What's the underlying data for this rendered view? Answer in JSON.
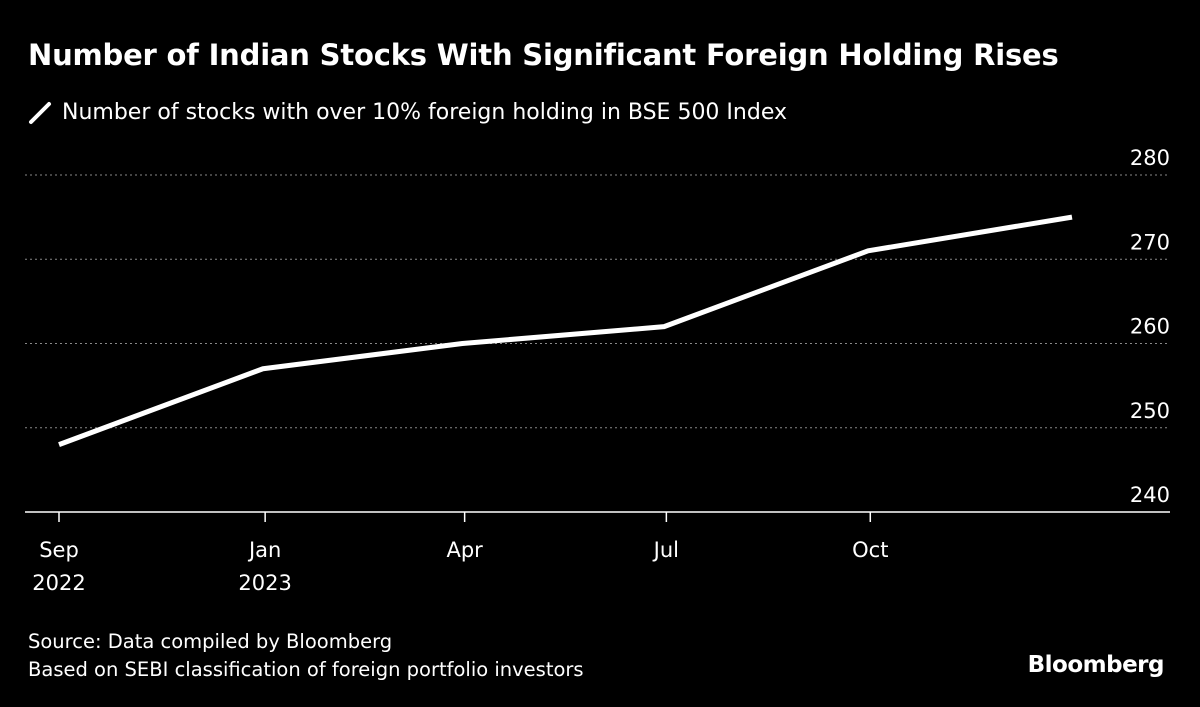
{
  "chart_data": {
    "type": "line",
    "title": "Number of Indian Stocks With Significant Foreign Holding Rises",
    "series": [
      {
        "name": "Number of stocks with over 10% foreign holding in BSE 500 Index",
        "color": "#ffffff",
        "x": [
          "2022-09-30",
          "2022-12-31",
          "2023-03-31",
          "2023-06-30",
          "2023-09-30",
          "2023-12-31"
        ],
        "values": [
          248,
          257,
          260,
          262,
          271,
          275
        ]
      }
    ],
    "ylim": [
      240,
      280
    ],
    "yticks": [
      240,
      250,
      260,
      270,
      280
    ],
    "xticks": [
      {
        "date": "2022-09-30",
        "label": "Sep",
        "sublabel": "2022"
      },
      {
        "date": "2023-01-01",
        "label": "Jan",
        "sublabel": "2023"
      },
      {
        "date": "2023-04-01",
        "label": "Apr",
        "sublabel": ""
      },
      {
        "date": "2023-07-01",
        "label": "Jul",
        "sublabel": ""
      },
      {
        "date": "2023-10-01",
        "label": "Oct",
        "sublabel": ""
      }
    ],
    "xlim": [
      "2022-09-15",
      "2024-02-25"
    ],
    "y_axis_position": "right",
    "grid": "horizontal dotted",
    "legend_placement": "top-left",
    "background": "#000000"
  },
  "footer": {
    "source": "Source: Data compiled by Bloomberg",
    "note": "Based on SEBI classification of foreign portfolio investors"
  },
  "brand": "Bloomberg"
}
